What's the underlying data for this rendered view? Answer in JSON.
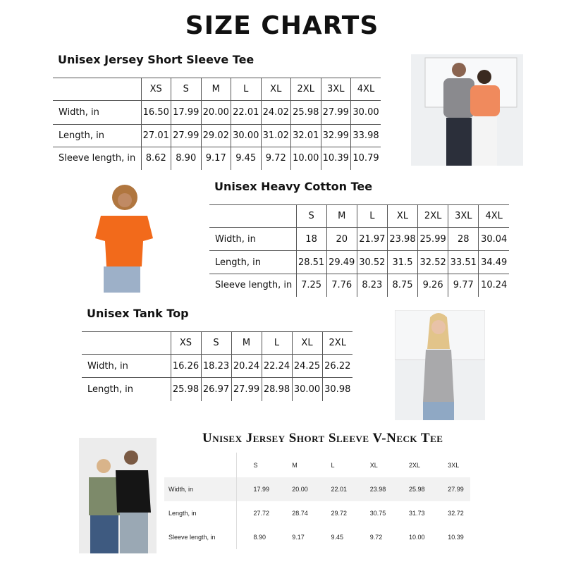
{
  "title": "SIZE CHARTS",
  "charts": [
    {
      "heading": "Unisex Jersey Short Sleeve Tee",
      "sizes": [
        "XS",
        "S",
        "M",
        "L",
        "XL",
        "2XL",
        "3XL",
        "4XL"
      ],
      "rows": [
        {
          "label": "Width, in",
          "values": [
            "16.50",
            "17.99",
            "20.00",
            "22.01",
            "24.02",
            "25.98",
            "27.99",
            "30.00"
          ]
        },
        {
          "label": "Length, in",
          "values": [
            "27.01",
            "27.99",
            "29.02",
            "30.00",
            "31.02",
            "32.01",
            "32.99",
            "33.98"
          ]
        },
        {
          "label": "Sleeve length, in",
          "values": [
            "8.62",
            "8.90",
            "9.17",
            "9.45",
            "9.72",
            "10.00",
            "10.39",
            "10.79"
          ]
        }
      ]
    },
    {
      "heading": "Unisex Heavy Cotton Tee",
      "sizes": [
        "S",
        "M",
        "L",
        "XL",
        "2XL",
        "3XL",
        "4XL"
      ],
      "rows": [
        {
          "label": "Width, in",
          "values": [
            "18",
            "20",
            "21.97",
            "23.98",
            "25.99",
            "28",
            "30.04"
          ]
        },
        {
          "label": "Length, in",
          "values": [
            "28.51",
            "29.49",
            "30.52",
            "31.5",
            "32.52",
            "33.51",
            "34.49"
          ]
        },
        {
          "label": "Sleeve length, in",
          "values": [
            "7.25",
            "7.76",
            "8.23",
            "8.75",
            "9.26",
            "9.77",
            "10.24"
          ]
        }
      ]
    },
    {
      "heading": "Unisex Tank Top",
      "sizes": [
        "XS",
        "S",
        "M",
        "L",
        "XL",
        "2XL"
      ],
      "rows": [
        {
          "label": "Width, in",
          "values": [
            "16.26",
            "18.23",
            "20.24",
            "22.24",
            "24.25",
            "26.22"
          ]
        },
        {
          "label": "Length, in",
          "values": [
            "25.98",
            "26.97",
            "27.99",
            "28.98",
            "30.00",
            "30.98"
          ]
        }
      ]
    },
    {
      "heading": "Unisex Jersey Short Sleeve V-Neck Tee",
      "sizes": [
        "S",
        "M",
        "L",
        "XL",
        "2XL",
        "3XL"
      ],
      "rows": [
        {
          "label": "Width, in",
          "values": [
            "17.99",
            "20.00",
            "22.01",
            "23.98",
            "25.98",
            "27.99"
          ]
        },
        {
          "label": "Length, in",
          "values": [
            "27.72",
            "28.74",
            "29.72",
            "30.75",
            "31.73",
            "32.72"
          ]
        },
        {
          "label": "Sleeve length, in",
          "values": [
            "8.90",
            "9.17",
            "9.45",
            "9.72",
            "10.00",
            "10.39"
          ]
        }
      ]
    }
  ],
  "colors": {
    "orange_tee": "#f26a1b",
    "coral_tee": "#f08a5d",
    "grey_tee": "#8a8a8e",
    "olive_tee": "#7d8a6a",
    "black_tee": "#151515"
  }
}
